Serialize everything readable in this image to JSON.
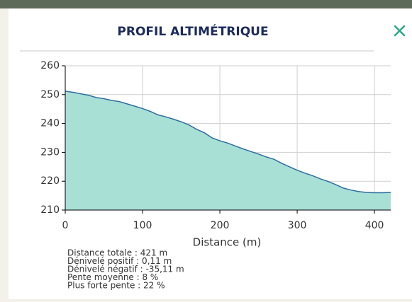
{
  "header": {
    "title": "PROFIL ALTIMÉTRIQUE"
  },
  "chart_data": {
    "type": "area",
    "xlabel": "Distance (m)",
    "x": [
      0,
      10,
      20,
      30,
      40,
      50,
      60,
      70,
      80,
      90,
      100,
      110,
      120,
      130,
      140,
      150,
      160,
      170,
      180,
      190,
      200,
      210,
      220,
      230,
      240,
      250,
      260,
      270,
      280,
      290,
      300,
      310,
      320,
      330,
      340,
      350,
      360,
      370,
      380,
      390,
      400,
      410,
      421
    ],
    "values": [
      251.2,
      250.8,
      250.3,
      249.8,
      249,
      248.6,
      248,
      247.6,
      246.8,
      246,
      245.2,
      244.2,
      243,
      242.3,
      241.5,
      240.6,
      239.5,
      238,
      236.8,
      235,
      234,
      233.2,
      232.2,
      231.2,
      230.3,
      229.4,
      228.4,
      227.6,
      226.2,
      225,
      223.8,
      222.8,
      221.9,
      220.8,
      219.9,
      218.8,
      217.6,
      216.9,
      216.4,
      216.1,
      216,
      216,
      216.1
    ],
    "color": "#a8e0d6",
    "line_color": "#2e6f9e",
    "xlim": [
      0,
      421
    ],
    "ylim": [
      210,
      260
    ],
    "xticks": [
      0,
      100,
      200,
      300,
      400
    ],
    "yticks": [
      210,
      220,
      230,
      240,
      250,
      260
    ],
    "grid": true
  },
  "stats": [
    "Distance totale : 421 m",
    "Dénivelé positif : 0,11 m",
    "Dénivelé négatif : -35,11 m",
    "Pente moyenne : 8 %",
    "Plus forte pente : 22 %"
  ]
}
